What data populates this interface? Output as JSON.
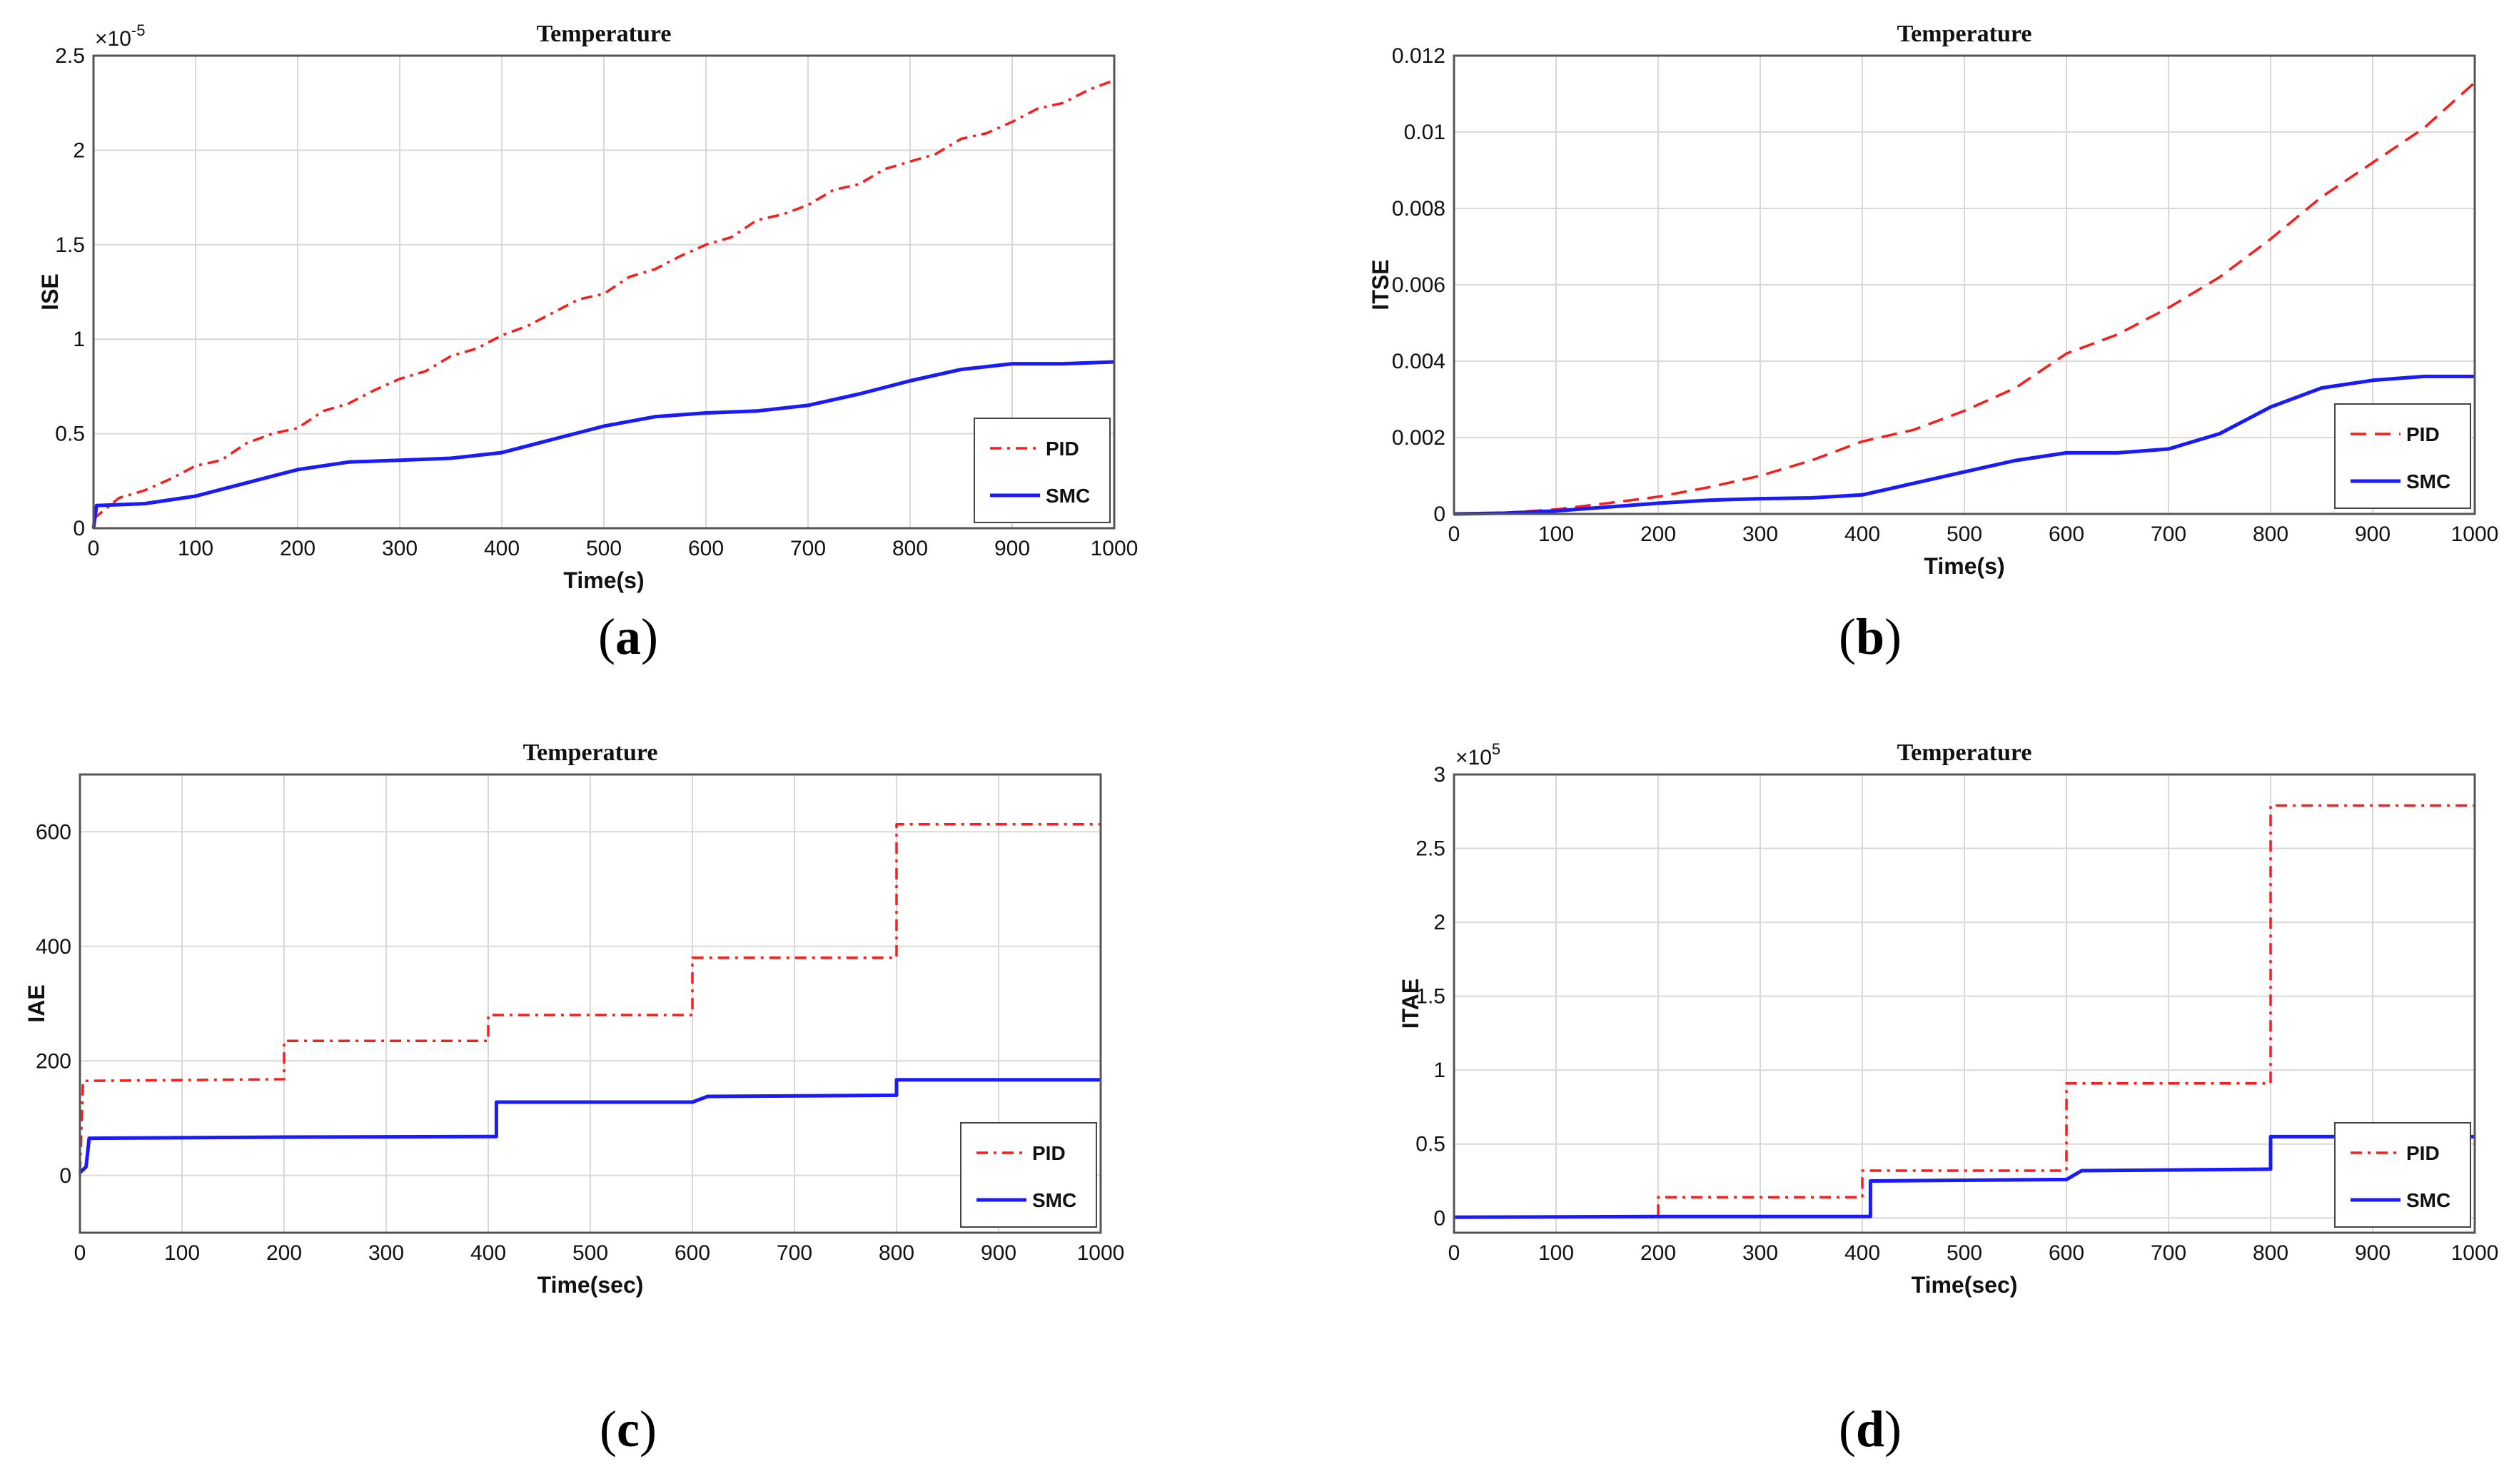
{
  "figure": {
    "captions": [
      "(a)",
      "(b)",
      "(c)",
      "(d)"
    ],
    "caption_letters": [
      "a",
      "b",
      "c",
      "d"
    ]
  },
  "colors": {
    "pid": "#ff1a1a",
    "smc": "#1a1aff"
  },
  "chart_data": [
    {
      "id": "a",
      "type": "line",
      "title": "Temperature",
      "xlabel": "Time(s)",
      "ylabel": "ISE",
      "exponent_base": "×10",
      "exponent_power": "-5",
      "xlim": [
        0,
        1000
      ],
      "ylim": [
        0,
        2.5
      ],
      "xticks": [
        0,
        100,
        200,
        300,
        400,
        500,
        600,
        700,
        800,
        900,
        1000
      ],
      "yticks": [
        0,
        0.5,
        1,
        1.5,
        2,
        2.5
      ],
      "yticklabels": [
        "0",
        "0.5",
        "1",
        "1.5",
        "2",
        "2.5"
      ],
      "legend": [
        "PID",
        "SMC"
      ],
      "legend_position": "bottom-right",
      "series": [
        {
          "name": "PID",
          "style": "dashdot",
          "x": [
            0,
            25,
            50,
            75,
            100,
            125,
            150,
            175,
            200,
            225,
            250,
            275,
            300,
            325,
            350,
            375,
            400,
            425,
            450,
            475,
            500,
            525,
            550,
            575,
            600,
            625,
            650,
            675,
            700,
            725,
            750,
            775,
            800,
            825,
            850,
            875,
            900,
            925,
            950,
            975,
            1000
          ],
          "y": [
            0.05,
            0.16,
            0.2,
            0.26,
            0.33,
            0.36,
            0.45,
            0.5,
            0.53,
            0.62,
            0.66,
            0.73,
            0.79,
            0.83,
            0.91,
            0.95,
            1.02,
            1.07,
            1.14,
            1.21,
            1.24,
            1.33,
            1.37,
            1.44,
            1.5,
            1.54,
            1.63,
            1.66,
            1.71,
            1.79,
            1.82,
            1.9,
            1.94,
            1.98,
            2.06,
            2.09,
            2.15,
            2.22,
            2.25,
            2.32,
            2.37
          ]
        },
        {
          "name": "SMC",
          "style": "solid",
          "x": [
            0,
            3,
            50,
            100,
            150,
            200,
            250,
            300,
            350,
            400,
            450,
            500,
            550,
            600,
            650,
            700,
            750,
            800,
            850,
            900,
            950,
            1000
          ],
          "y": [
            0,
            0.12,
            0.13,
            0.17,
            0.24,
            0.31,
            0.35,
            0.36,
            0.37,
            0.4,
            0.47,
            0.54,
            0.59,
            0.61,
            0.62,
            0.65,
            0.71,
            0.78,
            0.84,
            0.87,
            0.87,
            0.88
          ]
        }
      ]
    },
    {
      "id": "b",
      "type": "line",
      "title": "Temperature",
      "xlabel": "Time(s)",
      "ylabel": "ITSE",
      "xlim": [
        0,
        1000
      ],
      "ylim": [
        0,
        0.012
      ],
      "xticks": [
        0,
        100,
        200,
        300,
        400,
        500,
        600,
        700,
        800,
        900,
        1000
      ],
      "yticks": [
        0,
        0.002,
        0.004,
        0.006,
        0.008,
        0.01,
        0.012
      ],
      "yticklabels": [
        "0",
        "0.002",
        "0.004",
        "0.006",
        "0.008",
        "0.01",
        "0.012"
      ],
      "legend": [
        "PID",
        "SMC"
      ],
      "legend_position": "bottom-right",
      "series": [
        {
          "name": "PID",
          "style": "dashed",
          "x": [
            0,
            50,
            100,
            150,
            200,
            250,
            300,
            350,
            400,
            450,
            500,
            550,
            600,
            650,
            700,
            750,
            800,
            850,
            900,
            950,
            1000
          ],
          "y": [
            0,
            3e-05,
            0.00012,
            0.00028,
            0.00045,
            0.0007,
            0.001,
            0.0014,
            0.0019,
            0.0022,
            0.0027,
            0.0033,
            0.0042,
            0.0047,
            0.0054,
            0.0062,
            0.0072,
            0.0083,
            0.0092,
            0.0101,
            0.0113
          ]
        },
        {
          "name": "SMC",
          "style": "solid",
          "x": [
            0,
            50,
            100,
            150,
            200,
            250,
            300,
            350,
            400,
            450,
            500,
            550,
            600,
            650,
            700,
            750,
            800,
            850,
            900,
            950,
            1000
          ],
          "y": [
            0,
            2e-05,
            8e-05,
            0.00018,
            0.00028,
            0.00036,
            0.0004,
            0.00042,
            0.0005,
            0.0008,
            0.0011,
            0.0014,
            0.0016,
            0.0016,
            0.0017,
            0.0021,
            0.0028,
            0.0033,
            0.0035,
            0.0036,
            0.0036
          ]
        }
      ]
    },
    {
      "id": "c",
      "type": "line",
      "title": "Temperature",
      "xlabel": "Time(sec)",
      "ylabel": "IAE",
      "xlim": [
        0,
        1000
      ],
      "ylim": [
        -100,
        700
      ],
      "xticks": [
        0,
        100,
        200,
        300,
        400,
        500,
        600,
        700,
        800,
        900,
        1000
      ],
      "yticks": [
        0,
        200,
        400,
        600
      ],
      "yticklabels": [
        "0",
        "200",
        "400",
        "600"
      ],
      "legend": [
        "PID",
        "SMC"
      ],
      "legend_position": "bottom-right",
      "series": [
        {
          "name": "PID",
          "style": "dashdot",
          "x": [
            0,
            3,
            200,
            200,
            400,
            400,
            600,
            600,
            800,
            800,
            1000
          ],
          "y": [
            5,
            165,
            168,
            235,
            235,
            280,
            280,
            380,
            380,
            613,
            613
          ]
        },
        {
          "name": "SMC",
          "style": "solid",
          "x": [
            0,
            6,
            9,
            200,
            400,
            408,
            408,
            600,
            615,
            800,
            800,
            1000
          ],
          "y": [
            5,
            15,
            65,
            67,
            68,
            68,
            128,
            128,
            138,
            140,
            167,
            167
          ]
        }
      ]
    },
    {
      "id": "d",
      "type": "line",
      "title": "Temperature",
      "xlabel": "Time(sec)",
      "ylabel": "ITAE",
      "exponent_base": "×10",
      "exponent_power": "5",
      "xlim": [
        0,
        1000
      ],
      "ylim": [
        -0.1,
        3
      ],
      "xticks": [
        0,
        100,
        200,
        300,
        400,
        500,
        600,
        700,
        800,
        900,
        1000
      ],
      "yticks": [
        0,
        0.5,
        1,
        1.5,
        2,
        2.5,
        3
      ],
      "yticklabels": [
        "0",
        "0.5",
        "1",
        "1.5",
        "2",
        "2.5",
        "3"
      ],
      "legend": [
        "PID",
        "SMC"
      ],
      "legend_position": "bottom-right",
      "series": [
        {
          "name": "PID",
          "style": "dashdot",
          "x": [
            0,
            200,
            200,
            400,
            400,
            600,
            600,
            800,
            800,
            1000
          ],
          "y": [
            0.005,
            0.005,
            0.14,
            0.14,
            0.32,
            0.32,
            0.91,
            0.91,
            2.79,
            2.79
          ]
        },
        {
          "name": "SMC",
          "style": "solid",
          "x": [
            0,
            200,
            400,
            408,
            408,
            600,
            615,
            800,
            800,
            1000
          ],
          "y": [
            0.005,
            0.01,
            0.01,
            0.01,
            0.25,
            0.26,
            0.32,
            0.33,
            0.55,
            0.55
          ]
        }
      ]
    }
  ]
}
